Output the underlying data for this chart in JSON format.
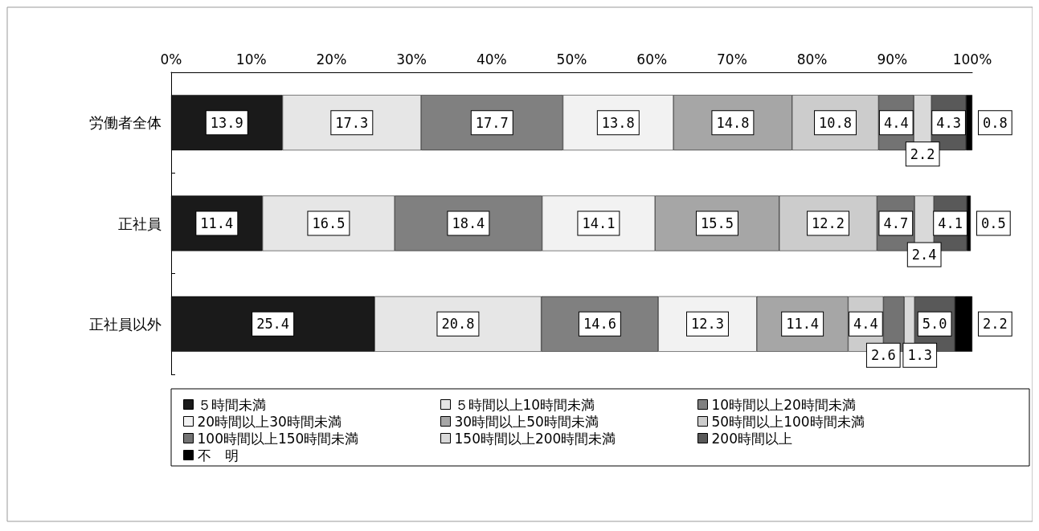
{
  "chart_data": {
    "type": "bar",
    "orientation": "horizontal",
    "stacked": true,
    "categories": [
      "労働者全体",
      "正社員",
      "正社員以外"
    ],
    "xlim": [
      0,
      100
    ],
    "xticks": [
      {
        "value": 0,
        "label": "0%"
      },
      {
        "value": 10,
        "label": "10%"
      },
      {
        "value": 20,
        "label": "20%"
      },
      {
        "value": 30,
        "label": "30%"
      },
      {
        "value": 40,
        "label": "40%"
      },
      {
        "value": 50,
        "label": "50%"
      },
      {
        "value": 60,
        "label": "60%"
      },
      {
        "value": 70,
        "label": "70%"
      },
      {
        "value": 80,
        "label": "80%"
      },
      {
        "value": 90,
        "label": "90%"
      },
      {
        "value": 100,
        "label": "100%"
      }
    ],
    "grid": false,
    "legend": "bottom",
    "series": [
      {
        "name": "５時間未満",
        "color": "#1a1a1a",
        "values": [
          13.9,
          11.4,
          25.4
        ],
        "value_labels": [
          "13.9",
          "11.4",
          "25.4"
        ]
      },
      {
        "name": "５時間以上10時間未満",
        "color": "#e6e6e6",
        "values": [
          17.3,
          16.5,
          20.8
        ],
        "value_labels": [
          "17.3",
          "16.5",
          "20.8"
        ]
      },
      {
        "name": "10時間以上20時間未満",
        "color": "#808080",
        "values": [
          17.7,
          18.4,
          14.6
        ],
        "value_labels": [
          "17.7",
          "18.4",
          "14.6"
        ]
      },
      {
        "name": "20時間以上30時間未満",
        "color": "#f2f2f2",
        "values": [
          13.8,
          14.1,
          12.3
        ],
        "value_labels": [
          "13.8",
          "14.1",
          "12.3"
        ]
      },
      {
        "name": "30時間以上50時間未満",
        "color": "#a6a6a6",
        "values": [
          14.8,
          15.5,
          11.4
        ],
        "value_labels": [
          "14.8",
          "15.5",
          "11.4"
        ]
      },
      {
        "name": "50時間以上100時間未満",
        "color": "#cccccc",
        "values": [
          10.8,
          12.2,
          4.4
        ],
        "value_labels": [
          "10.8",
          "12.2",
          "4.4"
        ]
      },
      {
        "name": "100時間以上150時間未満",
        "color": "#737373",
        "values": [
          4.4,
          4.7,
          2.6
        ],
        "value_labels": [
          "4.4",
          "4.7",
          "2.6"
        ]
      },
      {
        "name": "150時間以上200時間未満",
        "color": "#d9d9d9",
        "values": [
          2.2,
          2.4,
          1.3
        ],
        "value_labels": [
          "2.2",
          "2.4",
          "1.3"
        ]
      },
      {
        "name": "200時間以上",
        "color": "#595959",
        "values": [
          4.3,
          4.1,
          5.0
        ],
        "value_labels": [
          "4.3",
          "4.1",
          "5.0"
        ]
      },
      {
        "name": "不　明",
        "color": "#000000",
        "values": [
          0.8,
          0.5,
          2.2
        ],
        "value_labels": [
          "0.8",
          "0.5",
          "2.2"
        ]
      }
    ]
  }
}
